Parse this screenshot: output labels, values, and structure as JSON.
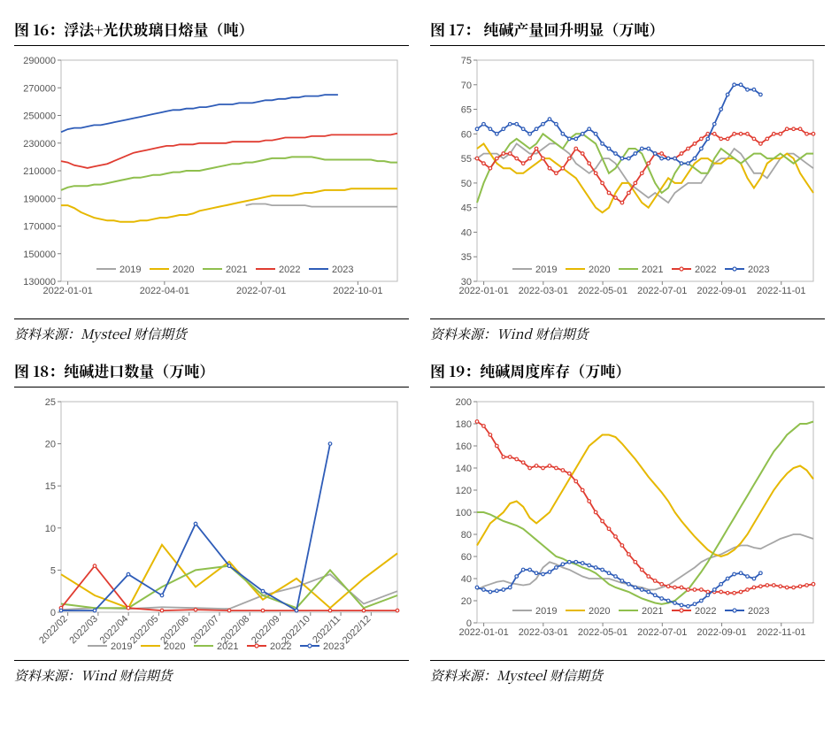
{
  "colors": {
    "s2019": "#a6a6a6",
    "s2020": "#e6b800",
    "s2021": "#8fbf4d",
    "s2022": "#e03c31",
    "s2023": "#2e5cb8",
    "border": "#bfbfbf",
    "tick": "#808080"
  },
  "legend_labels": [
    "2019",
    "2020",
    "2021",
    "2022",
    "2023"
  ],
  "fig16": {
    "title": "图 16：浮法+光伏玻璃日熔量（吨）",
    "source": "资料来源：Mysteel  财信期货",
    "type": "line",
    "x_labels": [
      "2022-01-01",
      "2022-04-01",
      "2022-07-01",
      "2022-10-01"
    ],
    "y_min": 130000,
    "y_max": 290000,
    "y_step": 20000,
    "x_count": 52,
    "series": {
      "2019": [
        null,
        null,
        null,
        null,
        null,
        null,
        null,
        null,
        null,
        null,
        null,
        null,
        null,
        null,
        null,
        null,
        null,
        null,
        null,
        null,
        null,
        null,
        null,
        null,
        null,
        null,
        null,
        null,
        185000,
        186000,
        186000,
        186000,
        185000,
        185000,
        185000,
        185000,
        185000,
        185000,
        184000,
        184000,
        184000,
        184000,
        184000,
        184000,
        184000,
        184000,
        184000,
        184000,
        184000,
        184000,
        184000,
        184000
      ],
      "2020": [
        185000,
        185000,
        183000,
        180000,
        178000,
        176000,
        175000,
        174000,
        174000,
        173000,
        173000,
        173000,
        174000,
        174000,
        175000,
        176000,
        176000,
        177000,
        178000,
        178000,
        179000,
        181000,
        182000,
        183000,
        184000,
        185000,
        186000,
        187000,
        188000,
        189000,
        190000,
        191000,
        192000,
        192000,
        192000,
        192000,
        193000,
        194000,
        194000,
        195000,
        196000,
        196000,
        196000,
        196000,
        197000,
        197000,
        197000,
        197000,
        197000,
        197000,
        197000,
        197000
      ],
      "2021": [
        196000,
        198000,
        199000,
        199000,
        199000,
        200000,
        200000,
        201000,
        202000,
        203000,
        204000,
        205000,
        205000,
        206000,
        207000,
        207000,
        208000,
        209000,
        209000,
        210000,
        210000,
        210000,
        211000,
        212000,
        213000,
        214000,
        215000,
        215000,
        216000,
        216000,
        217000,
        218000,
        219000,
        219000,
        219000,
        220000,
        220000,
        220000,
        220000,
        219000,
        218000,
        218000,
        218000,
        218000,
        218000,
        218000,
        218000,
        218000,
        217000,
        217000,
        216000,
        216000
      ],
      "2022": [
        217000,
        216000,
        214000,
        213000,
        212000,
        213000,
        214000,
        215000,
        217000,
        219000,
        221000,
        223000,
        224000,
        225000,
        226000,
        227000,
        228000,
        228000,
        229000,
        229000,
        229000,
        230000,
        230000,
        230000,
        230000,
        230000,
        231000,
        231000,
        231000,
        231000,
        231000,
        232000,
        232000,
        233000,
        234000,
        234000,
        234000,
        234000,
        235000,
        235000,
        235000,
        236000,
        236000,
        236000,
        236000,
        236000,
        236000,
        236000,
        236000,
        236000,
        236000,
        237000
      ],
      "2023": [
        238000,
        240000,
        241000,
        241000,
        242000,
        243000,
        243000,
        244000,
        245000,
        246000,
        247000,
        248000,
        249000,
        250000,
        251000,
        252000,
        253000,
        254000,
        254000,
        255000,
        255000,
        256000,
        256000,
        257000,
        258000,
        258000,
        258000,
        259000,
        259000,
        259000,
        260000,
        261000,
        261000,
        262000,
        262000,
        263000,
        263000,
        264000,
        264000,
        264000,
        265000,
        265000,
        265000,
        null,
        null,
        null,
        null,
        null,
        null,
        null,
        null,
        null
      ]
    }
  },
  "fig17": {
    "title": "图 17： 纯碱产量回升明显（万吨）",
    "source": "资料来源：Wind 财信期货",
    "type": "line_marker",
    "x_labels": [
      "2022-01-01",
      "2022-03-01",
      "2022-05-01",
      "2022-07-01",
      "2022-09-01",
      "2022-11-01"
    ],
    "y_min": 30,
    "y_max": 75,
    "y_step": 5,
    "x_count": 52,
    "series": {
      "2019": [
        55,
        56,
        56,
        56,
        55,
        56,
        58,
        57,
        56,
        56,
        57,
        58,
        58,
        57,
        56,
        54,
        53,
        52,
        53,
        55,
        55,
        54,
        52,
        50,
        49,
        48,
        47,
        48,
        47,
        46,
        48,
        49,
        50,
        50,
        50,
        52,
        54,
        55,
        55,
        57,
        56,
        54,
        52,
        52,
        51,
        53,
        55,
        56,
        56,
        55,
        54,
        53
      ],
      "2020": [
        57,
        58,
        56,
        54,
        53,
        53,
        52,
        52,
        53,
        54,
        55,
        55,
        54,
        53,
        52,
        51,
        49,
        47,
        45,
        44,
        45,
        48,
        50,
        50,
        48,
        46,
        45,
        47,
        49,
        51,
        50,
        50,
        52,
        54,
        55,
        55,
        54,
        54,
        55,
        55,
        54,
        51,
        49,
        51,
        54,
        55,
        55,
        56,
        55,
        52,
        50,
        48
      ],
      "2021": [
        46,
        50,
        53,
        55,
        56,
        58,
        59,
        58,
        57,
        58,
        60,
        59,
        58,
        57,
        59,
        60,
        60,
        59,
        58,
        55,
        52,
        53,
        55,
        57,
        57,
        56,
        53,
        50,
        48,
        49,
        52,
        54,
        54,
        53,
        52,
        52,
        55,
        57,
        56,
        55,
        54,
        55,
        56,
        56,
        55,
        55,
        56,
        55,
        54,
        55,
        56,
        56
      ],
      "2022": [
        55,
        54,
        53,
        55,
        56,
        56,
        55,
        54,
        55,
        57,
        55,
        53,
        52,
        53,
        55,
        57,
        56,
        54,
        52,
        50,
        48,
        47,
        46,
        48,
        50,
        52,
        54,
        56,
        56,
        55,
        55,
        56,
        57,
        58,
        59,
        60,
        60,
        59,
        59,
        60,
        60,
        60,
        59,
        58,
        59,
        60,
        60,
        61,
        61,
        61,
        60,
        60
      ],
      "2023": [
        61,
        62,
        61,
        60,
        61,
        62,
        62,
        61,
        60,
        61,
        62,
        63,
        62,
        60,
        59,
        59,
        60,
        61,
        60,
        58,
        57,
        56,
        55,
        55,
        56,
        57,
        57,
        56,
        55,
        55,
        55,
        54,
        54,
        55,
        57,
        59,
        62,
        65,
        68,
        70,
        70,
        69,
        69,
        68,
        null,
        null,
        null,
        null,
        null,
        null,
        null,
        null
      ]
    }
  },
  "fig18": {
    "title": "图 18：纯碱进口数量（万吨）",
    "source": "资料来源：Wind 财信期货",
    "type": "line_marker",
    "x_labels": [
      "2022/02",
      "2022/03",
      "2022/04",
      "2022/05",
      "2022/06",
      "2022/07",
      "2022/08",
      "2022/09",
      "2022/10",
      "2022/11",
      "2022/12"
    ],
    "y_min": 0,
    "y_max": 25,
    "y_step": 5,
    "x_rot": -45,
    "x_count": 11,
    "series": {
      "2019": [
        0.3,
        0.5,
        0.4,
        0.6,
        0.5,
        0.4,
        2.0,
        3.0,
        4.5,
        1.0,
        2.5
      ],
      "2020": [
        4.5,
        2.0,
        0.5,
        8.0,
        3.0,
        6.0,
        1.5,
        4.0,
        0.5,
        4.0,
        7.0
      ],
      "2021": [
        1.0,
        0.5,
        0.5,
        3.0,
        5.0,
        5.5,
        2.0,
        0.5,
        5.0,
        0.5,
        2.0
      ],
      "2022": [
        0.5,
        5.5,
        0.5,
        0.2,
        0.3,
        0.2,
        0.2,
        0.2,
        0.2,
        0.2,
        0.2
      ],
      "2023": [
        0.2,
        0.2,
        4.5,
        2.0,
        10.5,
        5.5,
        2.5,
        0.2,
        20.0,
        null,
        null
      ]
    }
  },
  "fig19": {
    "title": "图 19：纯碱周度库存（万吨）",
    "source": "资料来源：Mysteel 财信期货",
    "type": "line_marker",
    "x_labels": [
      "2022-01-01",
      "2022-03-01",
      "2022-05-01",
      "2022-07-01",
      "2022-09-01",
      "2022-11-01"
    ],
    "y_min": 0,
    "y_max": 200,
    "y_step": 20,
    "x_count": 52,
    "series": {
      "2019": [
        30,
        33,
        35,
        37,
        38,
        36,
        35,
        34,
        35,
        40,
        50,
        55,
        53,
        50,
        48,
        45,
        42,
        40,
        40,
        40,
        40,
        38,
        36,
        35,
        33,
        32,
        30,
        30,
        32,
        34,
        38,
        42,
        46,
        50,
        55,
        58,
        60,
        62,
        65,
        68,
        70,
        70,
        68,
        67,
        70,
        73,
        76,
        78,
        80,
        80,
        78,
        76
      ],
      "2020": [
        70,
        80,
        90,
        95,
        100,
        108,
        110,
        105,
        95,
        90,
        95,
        100,
        110,
        120,
        130,
        140,
        150,
        160,
        165,
        170,
        170,
        168,
        162,
        155,
        148,
        140,
        132,
        125,
        118,
        110,
        100,
        92,
        85,
        78,
        72,
        66,
        62,
        60,
        62,
        66,
        72,
        80,
        90,
        100,
        110,
        120,
        128,
        135,
        140,
        142,
        138,
        130
      ],
      "2021": [
        100,
        100,
        98,
        95,
        92,
        90,
        88,
        85,
        80,
        75,
        70,
        65,
        60,
        58,
        55,
        53,
        50,
        48,
        45,
        40,
        35,
        32,
        30,
        28,
        25,
        22,
        20,
        18,
        17,
        18,
        20,
        25,
        30,
        38,
        46,
        55,
        65,
        75,
        85,
        95,
        105,
        115,
        125,
        135,
        145,
        155,
        162,
        170,
        175,
        180,
        180,
        182
      ],
      "2022": [
        182,
        178,
        170,
        160,
        150,
        150,
        148,
        145,
        140,
        142,
        140,
        142,
        140,
        138,
        135,
        128,
        120,
        110,
        100,
        92,
        85,
        78,
        70,
        62,
        55,
        48,
        42,
        38,
        35,
        33,
        32,
        32,
        30,
        30,
        30,
        28,
        28,
        28,
        27,
        27,
        28,
        30,
        32,
        33,
        34,
        34,
        33,
        32,
        32,
        33,
        34,
        35
      ],
      "2023": [
        32,
        30,
        28,
        29,
        30,
        32,
        42,
        48,
        48,
        45,
        44,
        46,
        50,
        53,
        55,
        55,
        54,
        52,
        50,
        48,
        45,
        42,
        38,
        35,
        32,
        30,
        28,
        25,
        22,
        20,
        18,
        16,
        15,
        17,
        20,
        25,
        30,
        35,
        40,
        44,
        45,
        42,
        40,
        45,
        null,
        null,
        null,
        null,
        null,
        null,
        null,
        null
      ]
    }
  }
}
